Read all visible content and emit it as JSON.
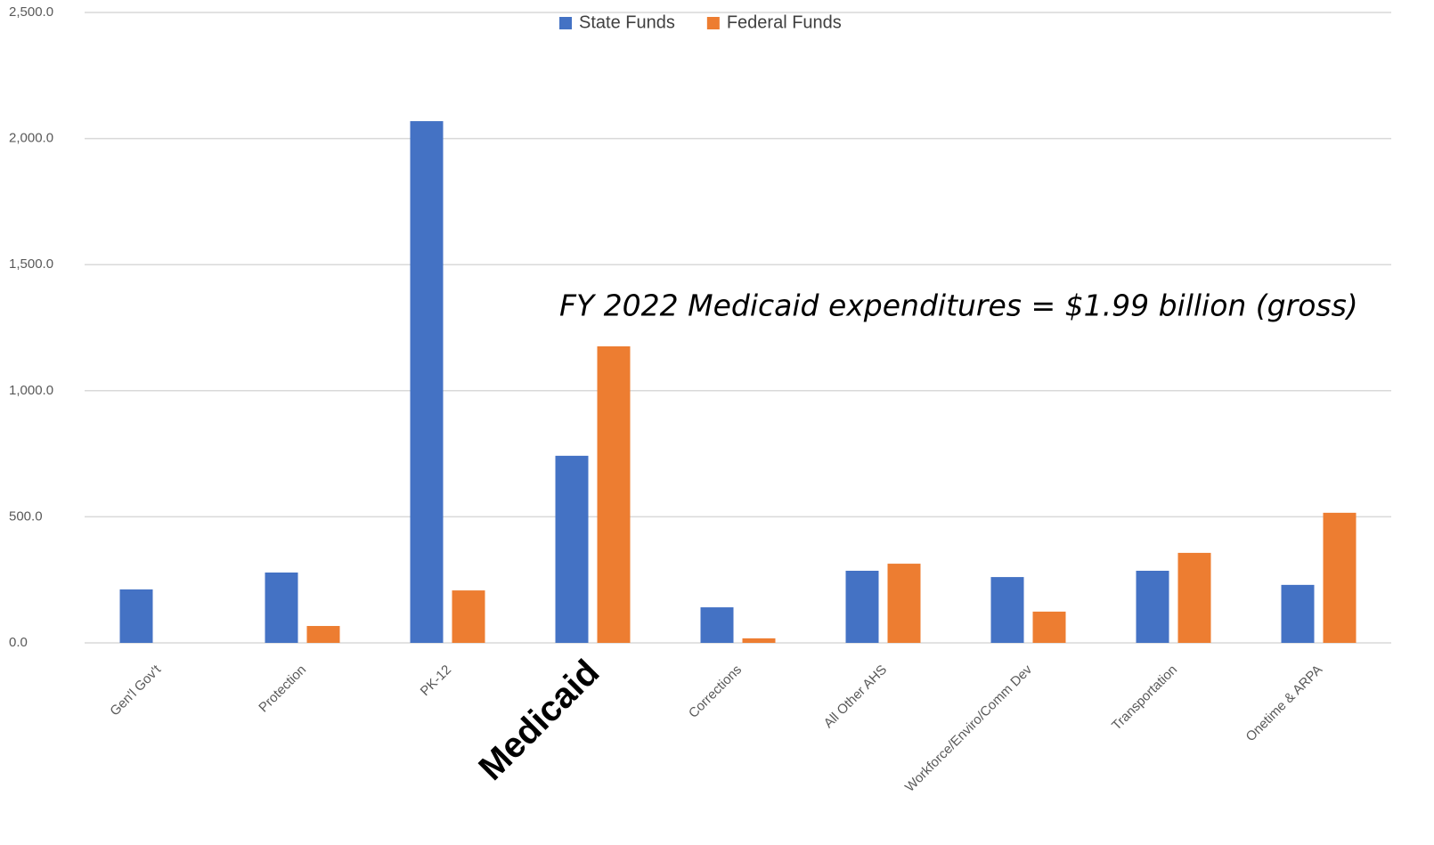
{
  "chart_data": {
    "type": "bar",
    "annotation": "FY 2022 Medicaid expenditures = $1.99 billion (gross)",
    "categories": [
      "Gen'l Gov't",
      "Protection",
      "PK-12",
      "Medicaid",
      "Corrections",
      "All Other AHS",
      "Workforce/Enviro/Comm Dev",
      "Transportation",
      "Onetime & ARPA"
    ],
    "series": [
      {
        "name": "State Funds",
        "color": "#4472c4",
        "values": [
          212,
          279,
          2069,
          742,
          141,
          286,
          261,
          286,
          230
        ]
      },
      {
        "name": "Federal Funds",
        "color": "#ed7d31",
        "values": [
          0,
          67,
          208,
          1176,
          18,
          314,
          124,
          357,
          516
        ]
      }
    ],
    "ylim": [
      0,
      2500
    ],
    "yticks": [
      {
        "value": 0,
        "label": "0.0"
      },
      {
        "value": 500,
        "label": "500.0"
      },
      {
        "value": 1000,
        "label": "1,000.0"
      },
      {
        "value": 1500,
        "label": "1,500.0"
      },
      {
        "value": 2000,
        "label": "2,000.0"
      },
      {
        "value": 2500,
        "label": "2,500.0"
      }
    ],
    "grid": true,
    "legend": "top"
  }
}
